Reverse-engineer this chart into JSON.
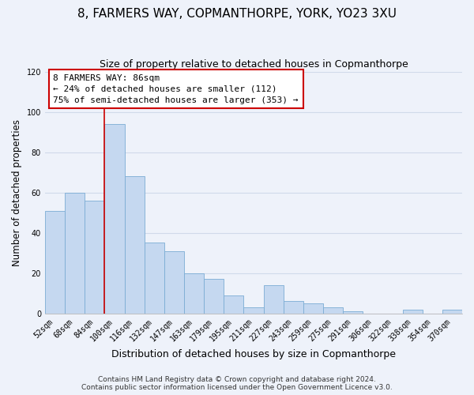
{
  "title": "8, FARMERS WAY, COPMANTHORPE, YORK, YO23 3XU",
  "subtitle": "Size of property relative to detached houses in Copmanthorpe",
  "xlabel": "Distribution of detached houses by size in Copmanthorpe",
  "ylabel": "Number of detached properties",
  "bin_labels": [
    "52sqm",
    "68sqm",
    "84sqm",
    "100sqm",
    "116sqm",
    "132sqm",
    "147sqm",
    "163sqm",
    "179sqm",
    "195sqm",
    "211sqm",
    "227sqm",
    "243sqm",
    "259sqm",
    "275sqm",
    "291sqm",
    "306sqm",
    "322sqm",
    "338sqm",
    "354sqm",
    "370sqm"
  ],
  "bar_heights": [
    51,
    60,
    56,
    94,
    68,
    35,
    31,
    20,
    17,
    9,
    3,
    14,
    6,
    5,
    3,
    1,
    0,
    0,
    2,
    0,
    2
  ],
  "bar_color": "#c5d8f0",
  "bar_edge_color": "#7bacd4",
  "marker_label": "8 FARMERS WAY: 86sqm",
  "annotation_line1": "← 24% of detached houses are smaller (112)",
  "annotation_line2": "75% of semi-detached houses are larger (353) →",
  "annotation_box_color": "#ffffff",
  "annotation_box_edge": "#cc0000",
  "marker_line_color": "#cc0000",
  "ylim": [
    0,
    120
  ],
  "yticks": [
    0,
    20,
    40,
    60,
    80,
    100,
    120
  ],
  "footer1": "Contains HM Land Registry data © Crown copyright and database right 2024.",
  "footer2": "Contains public sector information licensed under the Open Government Licence v3.0.",
  "background_color": "#eef2fa",
  "plot_background": "#eef2fa",
  "grid_color": "#d0daea",
  "title_fontsize": 11,
  "subtitle_fontsize": 9,
  "axis_label_fontsize": 8.5,
  "tick_fontsize": 7,
  "footer_fontsize": 6.5
}
